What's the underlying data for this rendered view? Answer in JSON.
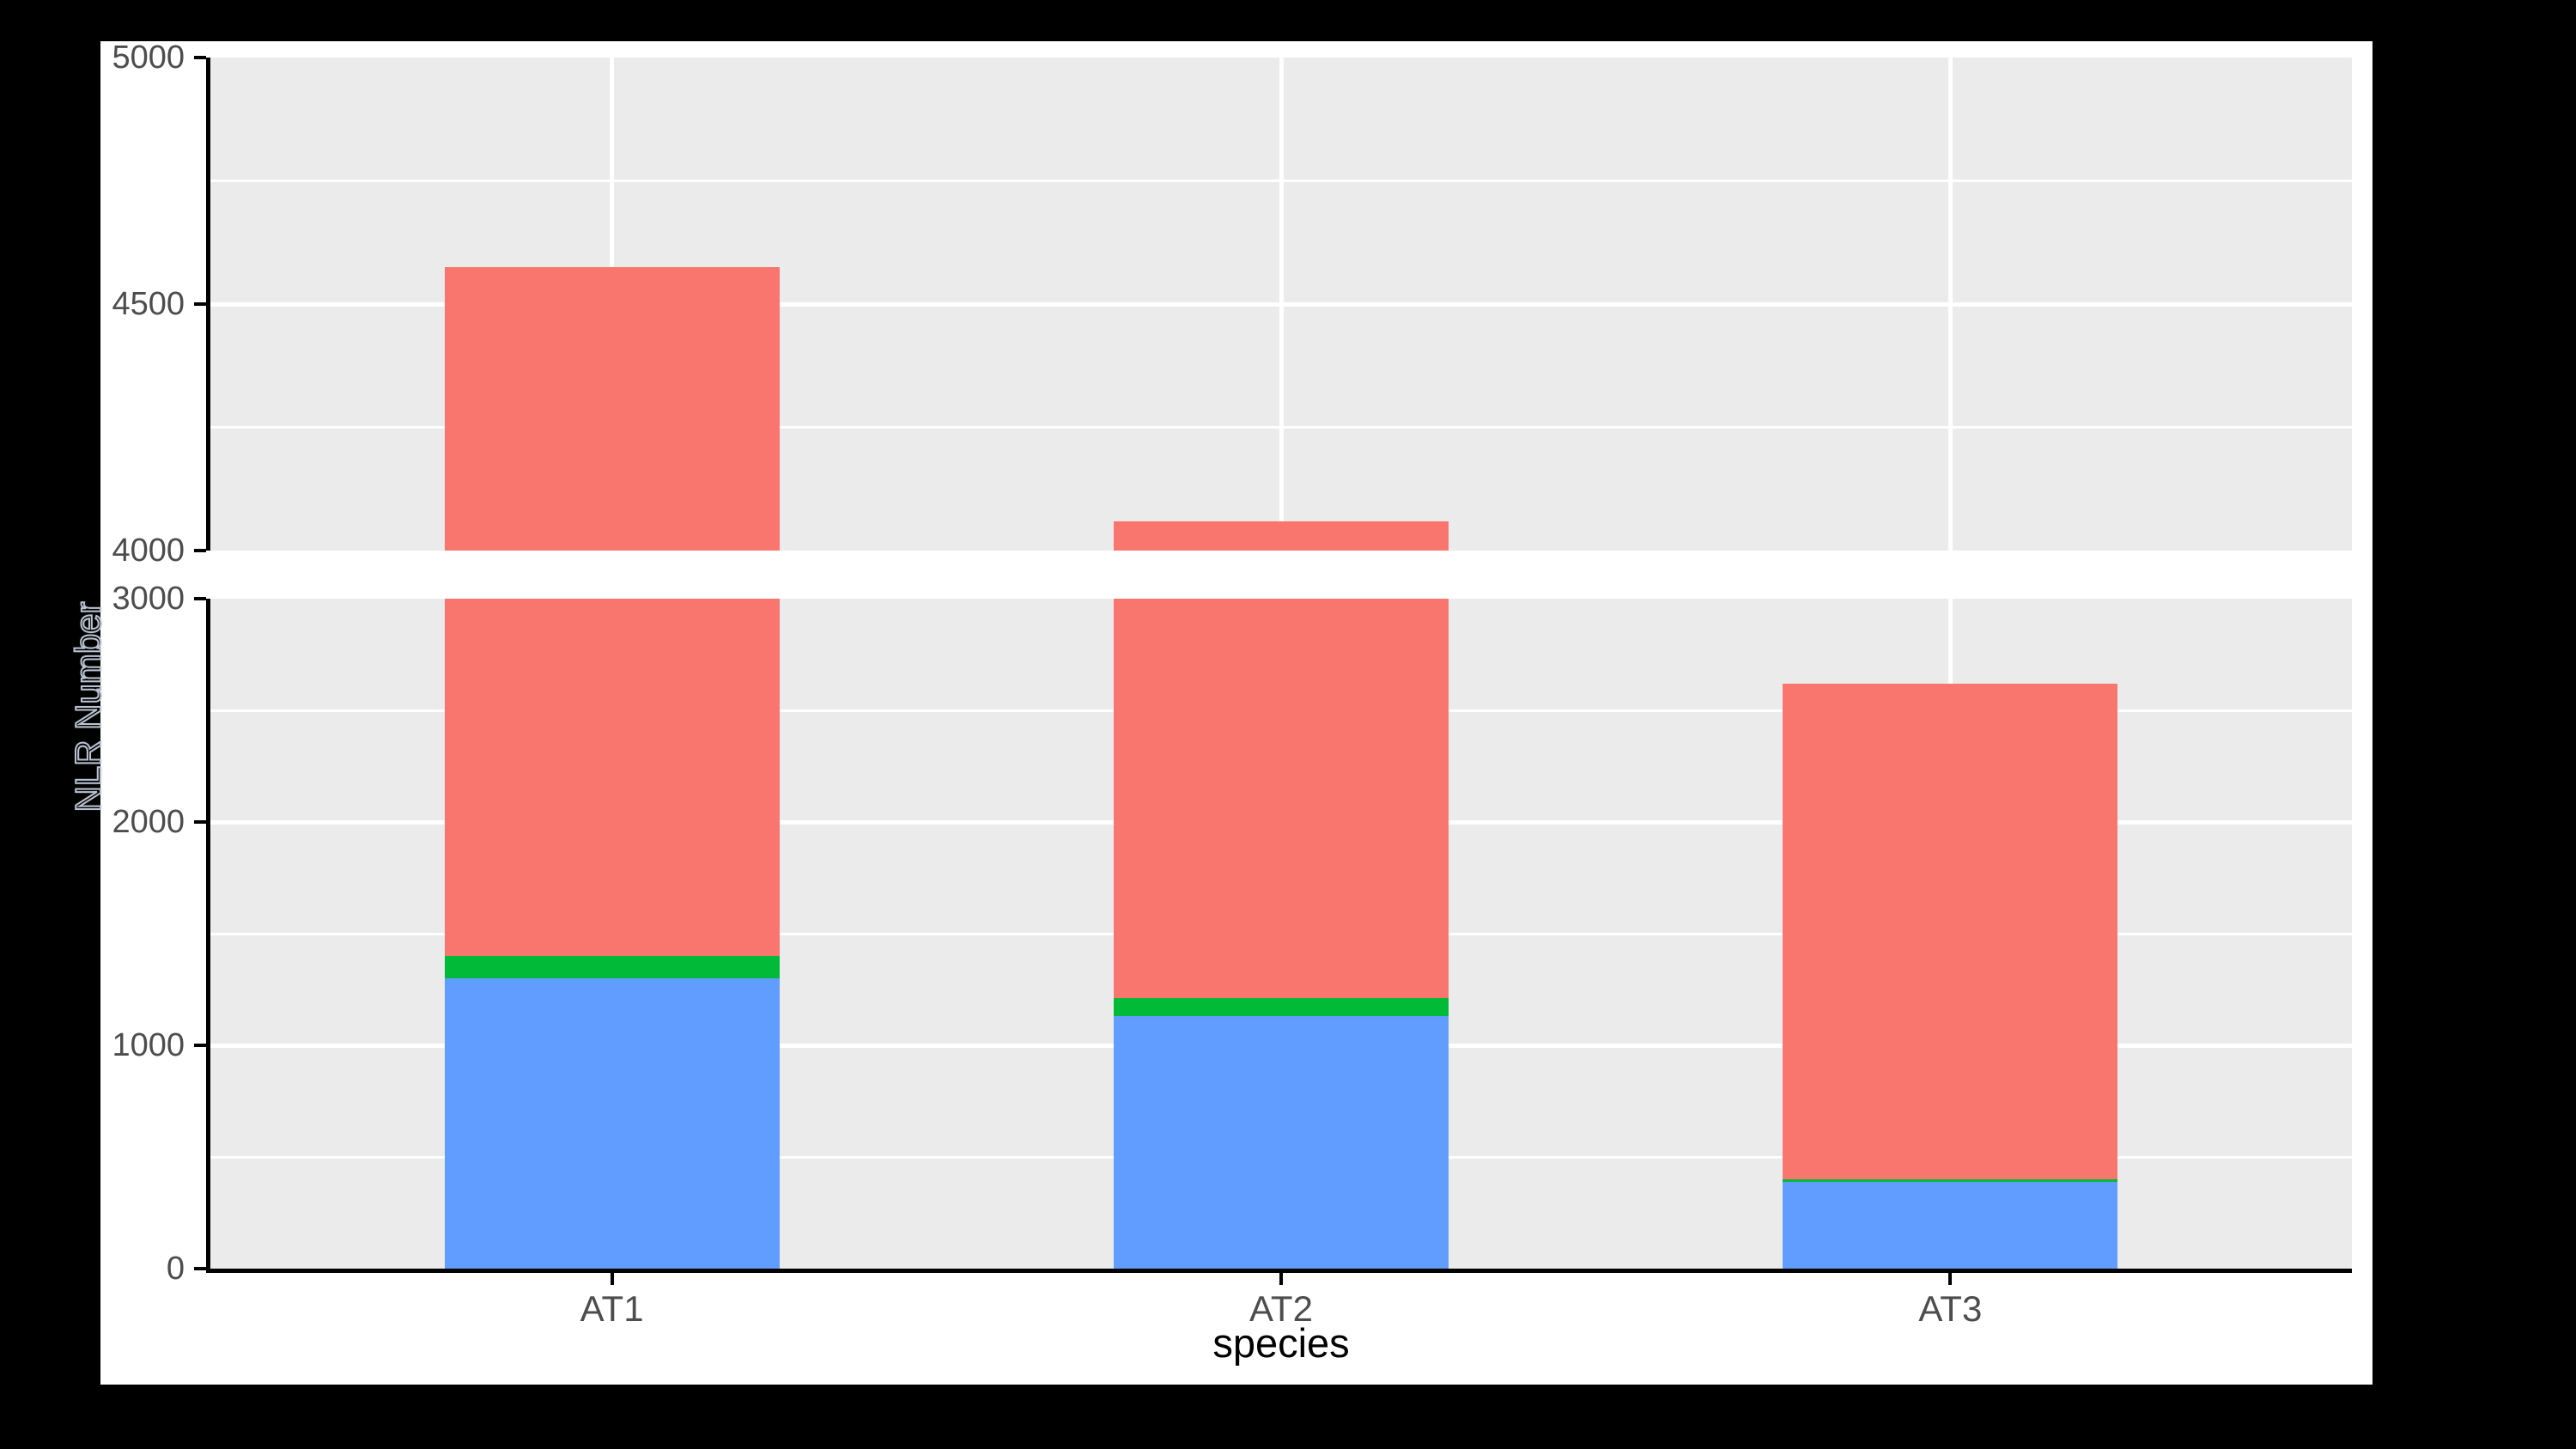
{
  "figure": {
    "background": "#000000",
    "plot_background": "#ffffff",
    "panel_background": "#ebebeb",
    "grid_color": "#ffffff",
    "axis_line_color": "#000000",
    "tick_label_color": "#4d4d4d",
    "axis_title_color": "#000000"
  },
  "chart_data": {
    "type": "bar",
    "stacked": true,
    "orientation": "vertical",
    "title": "",
    "xlabel": "species",
    "ylabel": "NLR Number",
    "categories": [
      "AT1",
      "AT2",
      "AT3"
    ],
    "series": [
      {
        "name": "blue-segment",
        "color": "#619cff",
        "values": [
          1300,
          1130,
          390
        ]
      },
      {
        "name": "green-segment",
        "color": "#00ba38",
        "values": [
          100,
          80,
          10
        ]
      },
      {
        "name": "red-segment",
        "color": "#f8766d",
        "values": [
          3175,
          2850,
          2220
        ]
      }
    ],
    "totals": [
      4575,
      4060,
      2620
    ],
    "legend": "none",
    "grid": true,
    "broken_y_axis": {
      "top_panel": {
        "range": [
          4000,
          5000
        ],
        "ticks": [
          5000,
          4500,
          4000
        ],
        "tick_labels": [
          "5000",
          "4500",
          "4000"
        ],
        "major_gridlines": [
          4500
        ],
        "minor_gridlines": [
          4250,
          4750
        ]
      },
      "bottom_panel": {
        "range": [
          0,
          3000
        ],
        "ticks": [
          3000,
          2000,
          1000,
          0
        ],
        "tick_labels": [
          "3000",
          "2000",
          "1000",
          "0"
        ],
        "major_gridlines": [
          1000,
          2000
        ],
        "minor_gridlines": [
          500,
          1500,
          2500
        ]
      }
    }
  }
}
